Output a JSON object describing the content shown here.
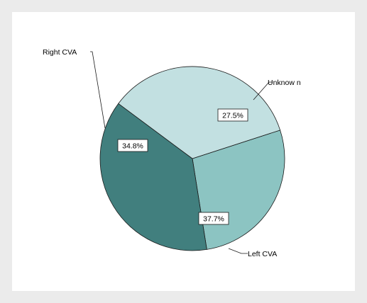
{
  "chart_data": {
    "type": "pie",
    "categories": [
      "Unknow n",
      "Left CVA",
      "Right CVA"
    ],
    "values": [
      27.5,
      37.7,
      34.8
    ],
    "value_labels": [
      "27.5%",
      "37.7%",
      "34.8%"
    ],
    "unit": "%",
    "title": "",
    "legend": "none",
    "colors": [
      "#8cc4c2",
      "#417f7e",
      "#c2e0e1"
    ]
  }
}
